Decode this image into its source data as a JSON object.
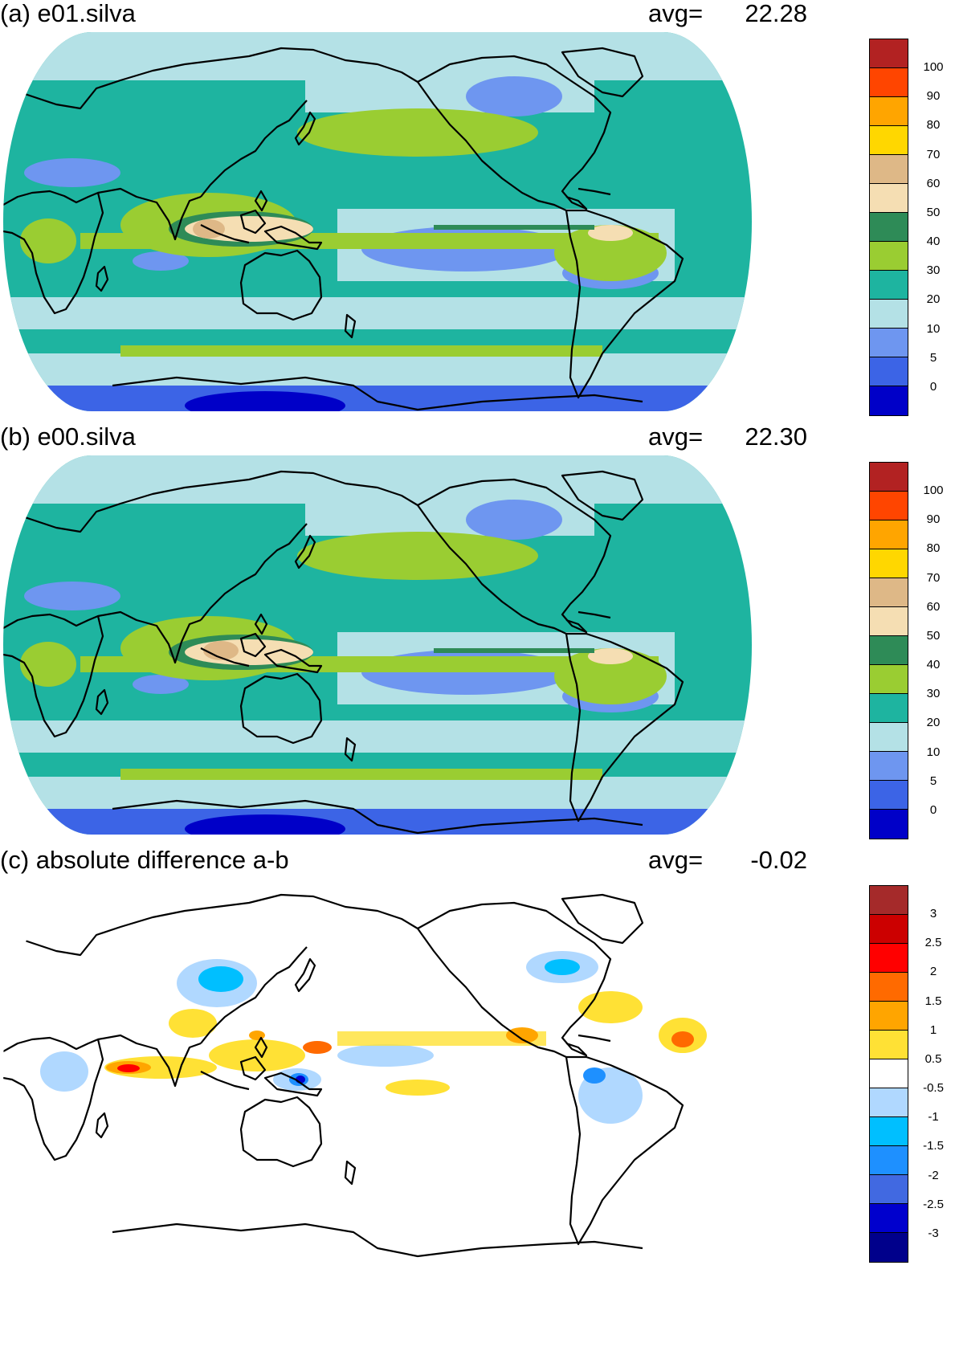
{
  "panels": [
    {
      "title": "(a) e01.silva",
      "avg_label": "avg=",
      "avg_value": "22.28",
      "colorbar": {
        "colors": [
          "#0000c8",
          "#3c64e6",
          "#6e96f0",
          "#b4e1e6",
          "#1eb4a0",
          "#9acd32",
          "#2e8b57",
          "#f5deb3",
          "#deb887",
          "#ffd700",
          "#ffa500",
          "#ff4500",
          "#b22222"
        ],
        "labels": [
          "0",
          "5",
          "10",
          "20",
          "30",
          "40",
          "50",
          "60",
          "70",
          "80",
          "90",
          "100"
        ]
      }
    },
    {
      "title": "(b) e00.silva",
      "avg_label": "avg=",
      "avg_value": "22.30",
      "colorbar": {
        "colors": [
          "#0000c8",
          "#3c64e6",
          "#6e96f0",
          "#b4e1e6",
          "#1eb4a0",
          "#9acd32",
          "#2e8b57",
          "#f5deb3",
          "#deb887",
          "#ffd700",
          "#ffa500",
          "#ff4500",
          "#b22222"
        ],
        "labels": [
          "0",
          "5",
          "10",
          "20",
          "30",
          "40",
          "50",
          "60",
          "70",
          "80",
          "90",
          "100"
        ]
      }
    },
    {
      "title": "(c) absolute difference a-b",
      "avg_label": "avg=",
      "avg_value": "-0.02",
      "colorbar": {
        "colors": [
          "#00008b",
          "#0000cd",
          "#4169e1",
          "#1e90ff",
          "#00bfff",
          "#b0d8ff",
          "#ffffff",
          "#ffe135",
          "#ffa500",
          "#ff6a00",
          "#ff0000",
          "#cc0000",
          "#a52a2a"
        ],
        "labels": [
          "-3",
          "-2.5",
          "-2",
          "-1.5",
          "-1",
          "-0.5",
          "0.5",
          "1",
          "1.5",
          "2",
          "2.5",
          "3"
        ]
      }
    }
  ]
}
